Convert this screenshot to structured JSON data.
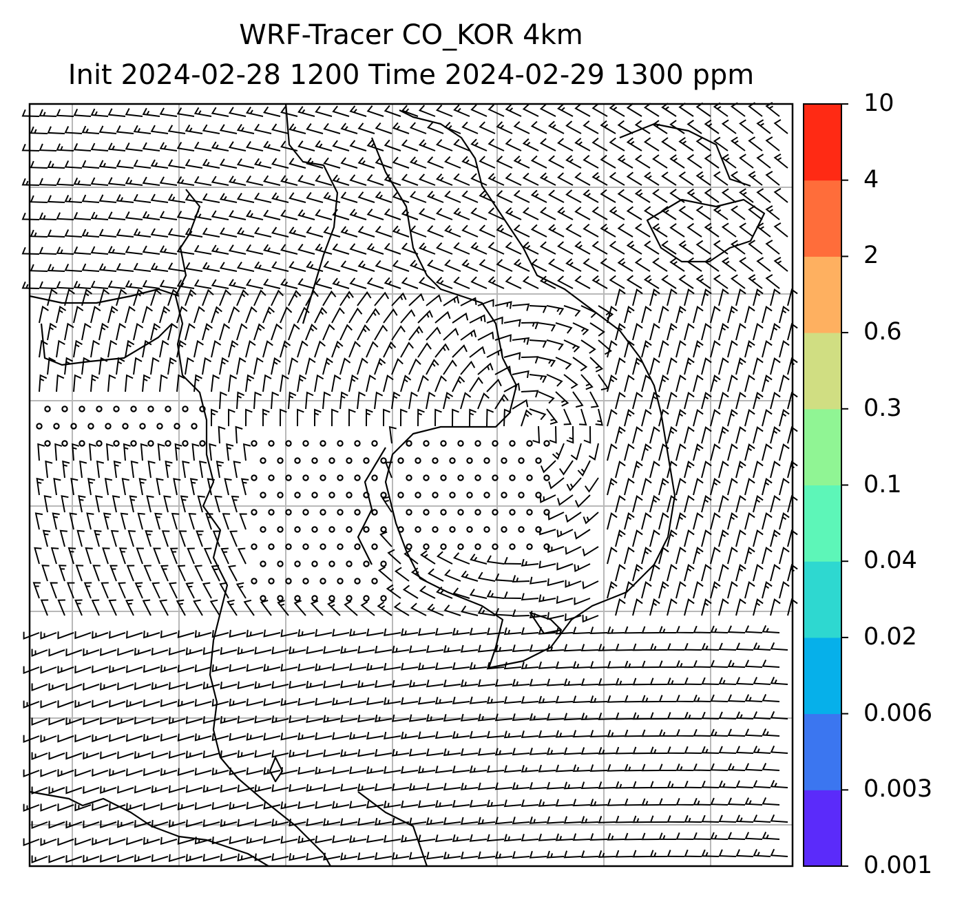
{
  "title": {
    "line1": "WRF-Tracer CO_KOR 4km",
    "line2": "Init 2024-02-28 1200 Time 2024-02-29 1300 ppm"
  },
  "colorbar": {
    "levels": [
      "0.001",
      "0.003",
      "0.006",
      "0.02",
      "0.04",
      "0.1",
      "0.3",
      "0.6",
      "2",
      "4",
      "10"
    ],
    "colors": [
      "#5b2bfa",
      "#3b76f0",
      "#06b0ea",
      "#2ed8d0",
      "#5df6b8",
      "#90f594",
      "#d0de82",
      "#feb060",
      "#ff6d3a",
      "#ff2a14"
    ]
  },
  "map": {
    "gridlines": "on",
    "coastline_color": "#000000",
    "grid_color": "#b8b8b8",
    "calm_symbol": "circle",
    "field": "wind barbs"
  }
}
